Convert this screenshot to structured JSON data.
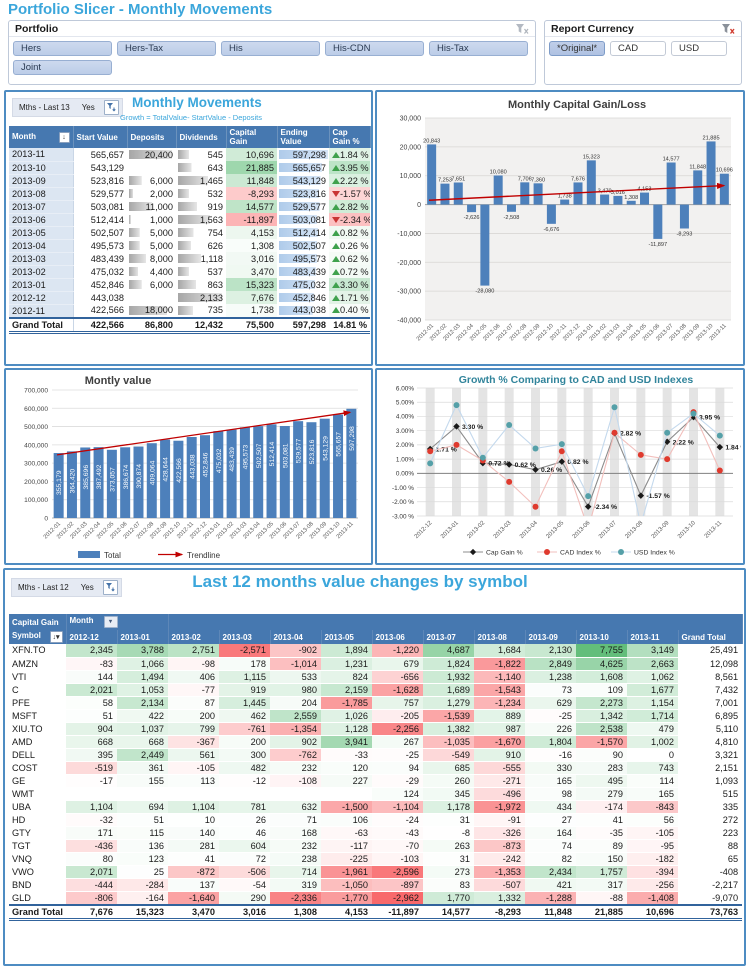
{
  "page_title": "Portfolio Slicer - Monthly Movements",
  "colors": {
    "accent_blue": "#3BA6DB",
    "header_blue": "#4678B0",
    "panel_border": "#4E8CC2",
    "bar_blue": "#4D80BB",
    "trend_red": "#C00000",
    "heat_green": "#63BE7B",
    "heat_red": "#F8696B"
  },
  "portfolio_slicer": {
    "title": "Portfolio",
    "buttons": [
      "Hers",
      "Hers-Tax",
      "His",
      "His-CDN",
      "His-Tax",
      "Joint"
    ]
  },
  "currency_slicer": {
    "title": "Report Currency",
    "buttons": [
      "*Original*",
      "CAD",
      "USD"
    ],
    "selected": "*Original*"
  },
  "monthly_movements": {
    "slicer": {
      "label": "Mths - Last 13",
      "value": "Yes"
    },
    "title": "Monthly Movements",
    "subtitle": "Growth = TotalValue- StartValue - Deposits",
    "columns": [
      "Month",
      "Start Value",
      "Deposits",
      "Dividends",
      "Capital Gain",
      "Ending Value",
      "Cap Gain %"
    ],
    "rows": [
      {
        "month": "2013-11",
        "start": 565657,
        "deposits": 20400,
        "dividends": 545,
        "gain": 10696,
        "ending": 597298,
        "pct": 1.84
      },
      {
        "month": "2013-10",
        "start": 543129,
        "deposits": null,
        "dividends": 643,
        "gain": 21885,
        "ending": 565657,
        "pct": 3.95
      },
      {
        "month": "2013-09",
        "start": 523816,
        "deposits": 6000,
        "dividends": 1465,
        "gain": 11848,
        "ending": 543129,
        "pct": 2.22
      },
      {
        "month": "2013-08",
        "start": 529577,
        "deposits": 2000,
        "dividends": 532,
        "gain": -8293,
        "ending": 523816,
        "pct": -1.57
      },
      {
        "month": "2013-07",
        "start": 503081,
        "deposits": 11000,
        "dividends": 919,
        "gain": 14577,
        "ending": 529577,
        "pct": 2.82
      },
      {
        "month": "2013-06",
        "start": 512414,
        "deposits": 1000,
        "dividends": 1563,
        "gain": -11897,
        "ending": 503081,
        "pct": -2.34
      },
      {
        "month": "2013-05",
        "start": 502507,
        "deposits": 5000,
        "dividends": 754,
        "gain": 4153,
        "ending": 512414,
        "pct": 0.82
      },
      {
        "month": "2013-04",
        "start": 495573,
        "deposits": 5000,
        "dividends": 626,
        "gain": 1308,
        "ending": 502507,
        "pct": 0.26
      },
      {
        "month": "2013-03",
        "start": 483439,
        "deposits": 8000,
        "dividends": 1118,
        "gain": 3016,
        "ending": 495573,
        "pct": 0.62
      },
      {
        "month": "2013-02",
        "start": 475032,
        "deposits": 4400,
        "dividends": 537,
        "gain": 3470,
        "ending": 483439,
        "pct": 0.72
      },
      {
        "month": "2013-01",
        "start": 452846,
        "deposits": 6000,
        "dividends": 863,
        "gain": 15323,
        "ending": 475032,
        "pct": 3.3
      },
      {
        "month": "2012-12",
        "start": 443038,
        "deposits": null,
        "dividends": 2133,
        "gain": 7676,
        "ending": 452846,
        "pct": 1.71
      },
      {
        "month": "2012-11",
        "start": 422566,
        "deposits": 18000,
        "dividends": 735,
        "gain": 1738,
        "ending": 443038,
        "pct": 0.4
      }
    ],
    "grand_total": {
      "label": "Grand Total",
      "start": 422566,
      "deposits": 86800,
      "dividends": 12432,
      "gain": 75500,
      "ending": 597298,
      "pct": 14.81
    }
  },
  "chart_data": [
    {
      "id": "capital",
      "type": "bar",
      "title": "Monthly Capital Gain/Loss",
      "categories": [
        "2012-01",
        "2012-02",
        "2012-03",
        "2012-04",
        "2012-05",
        "2012-06",
        "2012-07",
        "2012-08",
        "2012-09",
        "2012-10",
        "2012-11",
        "2012-12",
        "2013-01",
        "2013-02",
        "2013-03",
        "2013-04",
        "2013-05",
        "2013-06",
        "2013-07",
        "2013-08",
        "2013-09",
        "2013-10",
        "2013-11"
      ],
      "values": [
        20843,
        7253,
        7651,
        -2626,
        -28080,
        10080,
        -2508,
        7706,
        7360,
        -6676,
        1738,
        7676,
        15323,
        3470,
        3016,
        1308,
        4153,
        -11897,
        14577,
        -8293,
        11848,
        21885,
        10696
      ],
      "ylim": [
        -40000,
        30000
      ],
      "ytick": 10000,
      "grid": true,
      "trendline": [
        1500,
        6600
      ],
      "bar_color": "#4D80BB",
      "trend_color": "#C00000"
    },
    {
      "id": "value",
      "type": "bar",
      "title": "Montly value",
      "categories": [
        "2012-01",
        "2012-02",
        "2012-03",
        "2012-04",
        "2012-05",
        "2012-06",
        "2012-07",
        "2012-08",
        "2012-09",
        "2012-10",
        "2012-11",
        "2012-12",
        "2013-01",
        "2013-02",
        "2013-03",
        "2013-04",
        "2013-05",
        "2013-06",
        "2013-07",
        "2013-08",
        "2013-09",
        "2013-10",
        "2013-11"
      ],
      "values": [
        355179,
        364420,
        385696,
        387492,
        373057,
        386674,
        390874,
        409064,
        428644,
        422566,
        443038,
        452846,
        475032,
        483439,
        495573,
        502507,
        512414,
        503081,
        529577,
        523816,
        543129,
        565657,
        597298
      ],
      "ylim": [
        0,
        700000
      ],
      "ytick": 100000,
      "grid": true,
      "trendline": [
        345000,
        578000
      ],
      "legend": [
        "Total",
        "Trendline"
      ],
      "legend_position": "bottom",
      "bar_color": "#4D80BB",
      "trend_color": "#C00000"
    },
    {
      "id": "growth",
      "type": "line",
      "title": "Growth % Comparing to CAD and USD Indexes",
      "categories": [
        "2012-12",
        "2013-01",
        "2013-02",
        "2013-03",
        "2013-04",
        "2013-05",
        "2013-06",
        "2013-07",
        "2013-08",
        "2013-09",
        "2013-10",
        "2013-11"
      ],
      "series": [
        {
          "name": "Cap Gain %",
          "marker": "diamond",
          "marker_color": "#1A1A1A",
          "line_color": "#8C8C8C",
          "values": [
            1.71,
            3.3,
            0.72,
            0.62,
            0.26,
            0.82,
            -2.34,
            2.82,
            -1.57,
            2.22,
            3.95,
            1.84
          ],
          "show_labels": true
        },
        {
          "name": "CAD Index %",
          "marker": "circle",
          "marker_color": "#DF3A2E",
          "line_color": "#F2BFBC",
          "values": [
            1.55,
            2.0,
            0.9,
            -0.6,
            -2.35,
            1.55,
            -3.9,
            2.85,
            1.3,
            1.0,
            4.3,
            0.2
          ],
          "show_labels": false
        },
        {
          "name": "USD Index %",
          "marker": "circle",
          "marker_color": "#55A0A8",
          "line_color": "#C4D9ED",
          "values": [
            0.7,
            4.8,
            1.1,
            3.4,
            1.75,
            2.05,
            -1.6,
            4.65,
            -3.6,
            2.85,
            4.2,
            2.65
          ],
          "show_labels": false
        }
      ],
      "ylim": [
        -3,
        6
      ],
      "ytick": 1,
      "grid": true,
      "legend_position": "bottom"
    }
  ],
  "symbol_table": {
    "slicer": {
      "label": "Mths - Last 12",
      "value": "Yes"
    },
    "title": "Last 12 months value changes by symbol",
    "corner": {
      "measure": "Capital Gain",
      "col_field": "Month",
      "row_field": "Symbol"
    },
    "months": [
      "2012-12",
      "2013-01",
      "2013-02",
      "2013-03",
      "2013-04",
      "2013-05",
      "2013-06",
      "2013-07",
      "2013-08",
      "2013-09",
      "2013-10",
      "2013-11"
    ],
    "grand_total_label": "Grand Total",
    "rows": [
      {
        "symbol": "XFN.TO",
        "values": [
          2345,
          3788,
          2751,
          -2571,
          -902,
          1894,
          -1220,
          4687,
          1684,
          2130,
          7755,
          3149
        ],
        "total": 25491
      },
      {
        "symbol": "AMZN",
        "values": [
          -83,
          1066,
          -98,
          178,
          -1014,
          1231,
          679,
          1824,
          -1822,
          2849,
          4625,
          2663
        ],
        "total": 12098
      },
      {
        "symbol": "VTI",
        "values": [
          144,
          1494,
          406,
          1115,
          533,
          824,
          -656,
          1932,
          -1140,
          1238,
          1608,
          1062
        ],
        "total": 8561
      },
      {
        "symbol": "C",
        "values": [
          2021,
          1053,
          -77,
          919,
          980,
          2159,
          -1628,
          1689,
          -1543,
          73,
          109,
          1677
        ],
        "total": 7432
      },
      {
        "symbol": "PFE",
        "values": [
          58,
          2134,
          87,
          1445,
          204,
          -1785,
          757,
          1279,
          -1234,
          629,
          2273,
          1154
        ],
        "total": 7001
      },
      {
        "symbol": "MSFT",
        "values": [
          51,
          422,
          200,
          462,
          2559,
          1026,
          -205,
          -1539,
          889,
          -25,
          1342,
          1714
        ],
        "total": 6895
      },
      {
        "symbol": "XIU.TO",
        "values": [
          904,
          1037,
          799,
          -761,
          -1354,
          1128,
          -2256,
          1382,
          987,
          226,
          2538,
          479
        ],
        "total": 5110
      },
      {
        "symbol": "AMD",
        "values": [
          668,
          668,
          -367,
          200,
          902,
          3941,
          267,
          -1035,
          -1670,
          1804,
          -1570,
          1002
        ],
        "total": 4810
      },
      {
        "symbol": "DELL",
        "values": [
          395,
          2449,
          561,
          300,
          -762,
          -33,
          -25,
          -549,
          910,
          -16,
          90,
          0
        ],
        "total": 3321
      },
      {
        "symbol": "COST",
        "values": [
          -519,
          361,
          -105,
          482,
          232,
          120,
          94,
          685,
          -555,
          330,
          283,
          743
        ],
        "total": 2151
      },
      {
        "symbol": "GE",
        "values": [
          -17,
          155,
          113,
          -12,
          -108,
          227,
          -29,
          260,
          -271,
          165,
          495,
          114
        ],
        "total": 1093
      },
      {
        "symbol": "WMT",
        "values": [
          null,
          null,
          null,
          null,
          null,
          null,
          124,
          345,
          -496,
          98,
          279,
          165
        ],
        "total": 515
      },
      {
        "symbol": "UBA",
        "values": [
          1104,
          694,
          1104,
          781,
          632,
          -1500,
          -1104,
          1178,
          -1972,
          434,
          -174,
          -843
        ],
        "total": 335
      },
      {
        "symbol": "HD",
        "values": [
          -32,
          51,
          10,
          26,
          71,
          106,
          -24,
          31,
          -91,
          27,
          41,
          56
        ],
        "total": 272
      },
      {
        "symbol": "GTY",
        "values": [
          171,
          115,
          140,
          46,
          168,
          -63,
          -43,
          -8,
          -326,
          164,
          -35,
          -105
        ],
        "total": 223
      },
      {
        "symbol": "TGT",
        "values": [
          -436,
          136,
          281,
          604,
          232,
          -117,
          -70,
          263,
          -873,
          74,
          89,
          -95
        ],
        "total": 88
      },
      {
        "symbol": "VNQ",
        "values": [
          80,
          123,
          41,
          72,
          238,
          -225,
          -103,
          31,
          -242,
          82,
          150,
          -182
        ],
        "total": 65
      },
      {
        "symbol": "VWO",
        "values": [
          2071,
          25,
          -872,
          -506,
          714,
          -1961,
          -2596,
          273,
          -1353,
          2434,
          1757,
          -394
        ],
        "total": -408
      },
      {
        "symbol": "BND",
        "values": [
          -444,
          -284,
          137,
          -54,
          319,
          -1050,
          -897,
          83,
          -507,
          421,
          317,
          -256
        ],
        "total": -2217
      },
      {
        "symbol": "GLD",
        "values": [
          -806,
          -164,
          -1640,
          290,
          -2336,
          -1770,
          -2962,
          1770,
          1332,
          -1288,
          -88,
          -1408
        ],
        "total": -9070
      }
    ],
    "grand_total": {
      "values": [
        7676,
        15323,
        3470,
        3016,
        1308,
        4153,
        -11897,
        14577,
        -8293,
        11848,
        21885,
        10696
      ],
      "total": 73763
    }
  }
}
